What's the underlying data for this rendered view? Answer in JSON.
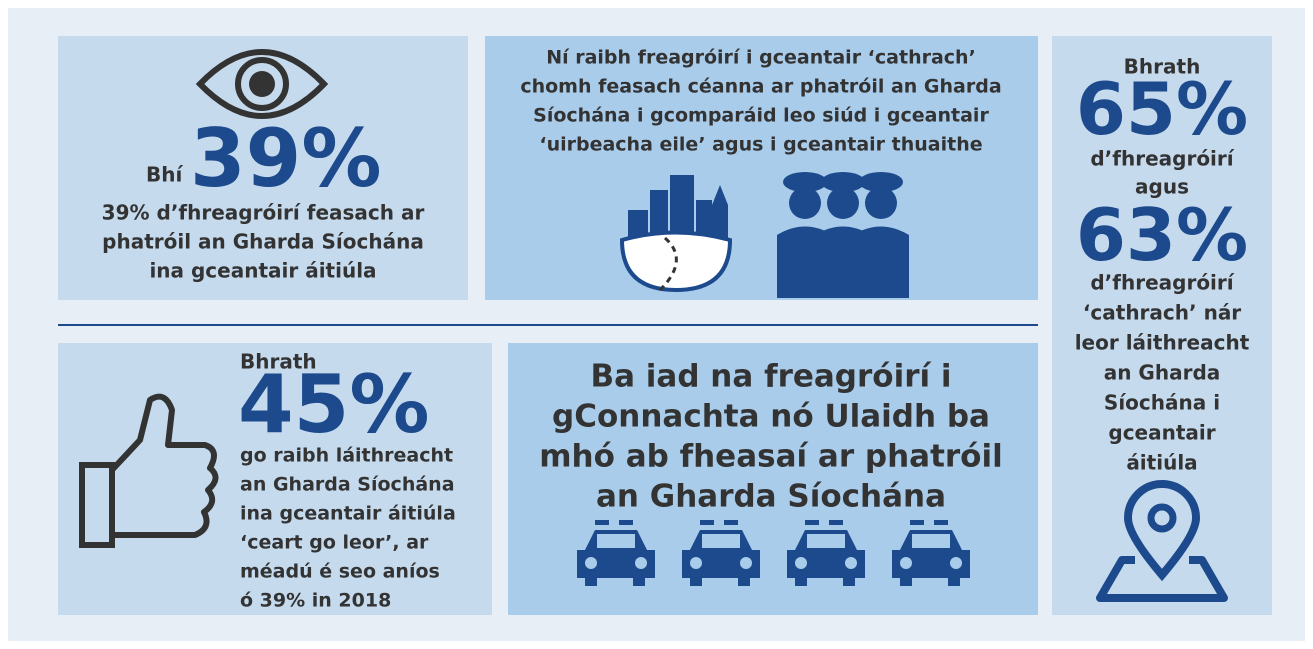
{
  "eye_panel": {
    "prefix": "Bhí",
    "figure": "39%",
    "lines": [
      "39% d’fhreagróirí feasach ar",
      "phatróil an Gharda Síochána",
      "ina gceantair áitiúla"
    ]
  },
  "urban_panel": {
    "lines": [
      "Ní raibh freagróirí i gceantair ‘cathrach’",
      "chomh feasach céanna ar phatróil an Gharda",
      "Síochána i gcomparáid leo siúd i gceantair",
      "‘uirbeacha eile’ agus i gceantair thuaithe"
    ]
  },
  "side_panel": {
    "intro": "Bhrath",
    "figure_1": "65%",
    "lines_1": [
      "d’fhreagróirí",
      "agus"
    ],
    "figure_2": "63%",
    "lines_2": [
      "d’fhreagróirí",
      "‘cathrach’ nár",
      "leor láithreacht",
      "an Gharda",
      "Síochána i",
      "gceantair",
      "áitiúla"
    ]
  },
  "presence_panel": {
    "intro": "Bhrath",
    "figure": "45%",
    "lines": [
      "go raibh láithreacht",
      "an Gharda Síochána",
      "ina gceantair áitiúla",
      "‘ceart go leor’, ar",
      "méadú é seo aníos",
      "ó 39% in 2018"
    ]
  },
  "region_panel": {
    "lines": [
      "Ba iad na freagróirí i",
      "gConnachta nó Ulaidh ba",
      "mhó ab fheasaí ar phatróil",
      "an Gharda Síochána"
    ]
  }
}
